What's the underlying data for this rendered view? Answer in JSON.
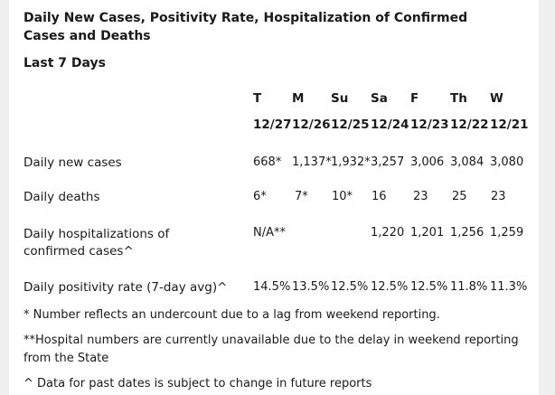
{
  "title": "Daily New Cases, Positivity Rate, Hospitalization of Confirmed Cases and Deaths",
  "subtitle": "Last 7 Days",
  "days": [
    "T",
    "M",
    "Su",
    "Sa",
    "F",
    "Th",
    "W"
  ],
  "dates": [
    "12/27",
    "12/26",
    "12/25",
    "12/24",
    "12/23",
    "12/22",
    "12/21"
  ],
  "rows": [
    {
      "label": "Daily new cases",
      "values": [
        "668*",
        "1,137*",
        "1,932*",
        "3,257",
        "3,006",
        "3,084",
        "3,080"
      ]
    },
    {
      "label": "Daily deaths",
      "values": [
        "6*",
        "7*",
        "10*",
        "16",
        "23",
        "25",
        "23"
      ]
    },
    {
      "label": "Daily hospitalizations of confirmed cases^",
      "values": [
        "N/A**",
        "",
        "",
        "1,220",
        "1,201",
        "1,256",
        "1,259"
      ]
    },
    {
      "label": "Daily positivity rate (7-day avg)^",
      "values": [
        "14.5%",
        "13.5%",
        "12.5%",
        "12.5%",
        "12.5%",
        "11.8%",
        "11.3%"
      ]
    }
  ],
  "notes": [
    "* Number reflects an undercount due to a lag from weekend reporting.",
    "**Hospital numbers are currently unavailable due to the delay in weekend reporting from the State",
    "^ Data for past dates is subject to change in future reports"
  ]
}
